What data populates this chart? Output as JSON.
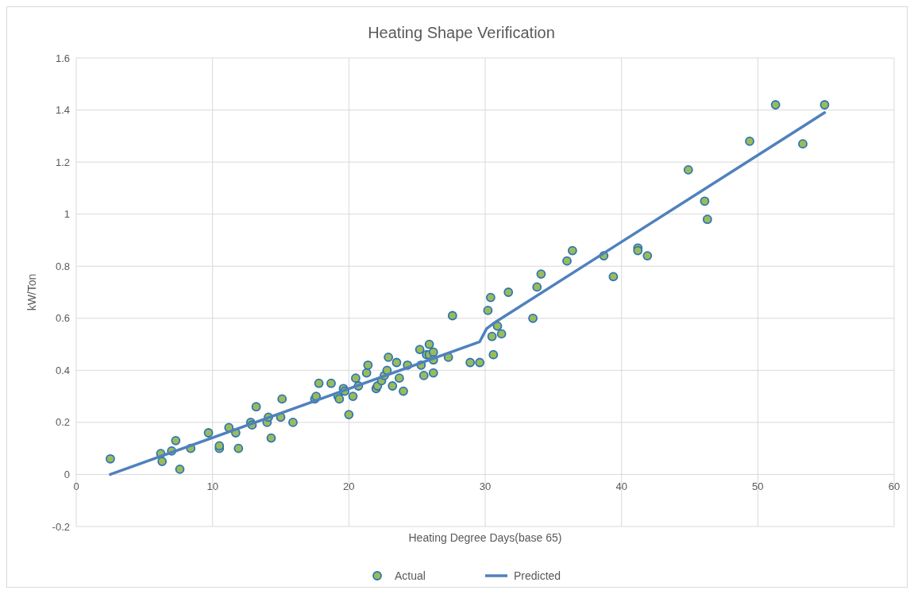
{
  "chart_data": {
    "type": "scatter",
    "title": "Heating Shape Verification",
    "xlabel": "Heating Degree Days(base 65)",
    "ylabel": "kW/Ton",
    "xlim": [
      0,
      60
    ],
    "xticks": [
      0,
      10,
      20,
      30,
      40,
      50,
      60
    ],
    "ylim": [
      -0.2,
      1.6
    ],
    "yticks": [
      -0.2,
      0,
      0.2,
      0.4,
      0.6,
      0.8,
      1,
      1.2,
      1.4,
      1.6
    ],
    "grid": true,
    "legend": "bottom",
    "series": [
      {
        "name": "Actual",
        "marker": "circle",
        "color": "#9bbb59",
        "x": [
          2.5,
          6.2,
          6.3,
          7.0,
          7.3,
          7.6,
          8.4,
          9.7,
          10.5,
          10.5,
          11.2,
          11.7,
          11.9,
          12.8,
          12.9,
          13.2,
          14.0,
          14.1,
          14.3,
          15.0,
          15.1,
          15.9,
          17.5,
          17.6,
          17.8,
          18.7,
          19.2,
          19.3,
          19.6,
          19.7,
          20.0,
          20.3,
          20.5,
          20.7,
          21.3,
          21.4,
          22.0,
          22.1,
          22.4,
          22.6,
          22.8,
          22.9,
          23.2,
          23.5,
          23.7,
          24.0,
          24.3,
          25.2,
          25.3,
          25.5,
          25.7,
          25.9,
          25.9,
          26.2,
          26.2,
          26.2,
          27.3,
          27.6,
          28.9,
          29.6,
          30.2,
          30.4,
          30.5,
          30.6,
          30.9,
          31.2,
          31.7,
          33.5,
          33.8,
          34.1,
          36.0,
          36.4,
          38.7,
          39.4,
          41.2,
          41.2,
          41.9,
          44.9,
          46.1,
          46.3,
          49.4,
          51.3,
          53.3,
          54.9
        ],
        "values": [
          0.06,
          0.08,
          0.05,
          0.09,
          0.13,
          0.02,
          0.1,
          0.16,
          0.1,
          0.11,
          0.18,
          0.16,
          0.1,
          0.2,
          0.19,
          0.26,
          0.2,
          0.22,
          0.14,
          0.22,
          0.29,
          0.2,
          0.29,
          0.3,
          0.35,
          0.35,
          0.3,
          0.29,
          0.33,
          0.32,
          0.23,
          0.3,
          0.37,
          0.34,
          0.39,
          0.42,
          0.33,
          0.34,
          0.36,
          0.38,
          0.4,
          0.45,
          0.34,
          0.43,
          0.37,
          0.32,
          0.42,
          0.48,
          0.42,
          0.38,
          0.46,
          0.5,
          0.46,
          0.44,
          0.47,
          0.39,
          0.45,
          0.61,
          0.43,
          0.43,
          0.63,
          0.68,
          0.53,
          0.46,
          0.57,
          0.54,
          0.7,
          0.6,
          0.72,
          0.77,
          0.82,
          0.86,
          0.84,
          0.76,
          0.87,
          0.86,
          0.84,
          1.17,
          1.05,
          0.98,
          1.28,
          1.42,
          1.27,
          1.42
        ]
      },
      {
        "name": "Predicted",
        "type": "line",
        "color": "#4f81bd",
        "x": [
          2.5,
          29.6,
          30.1,
          30.6,
          54.9
        ],
        "values": [
          0,
          0.51,
          0.56,
          0.58,
          1.39
        ]
      }
    ]
  }
}
